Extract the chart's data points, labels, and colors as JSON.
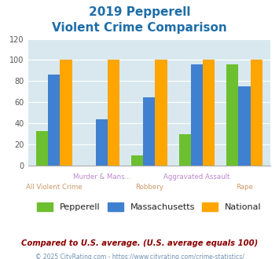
{
  "title_line1": "2019 Pepperell",
  "title_line2": "Violent Crime Comparison",
  "categories": [
    "All Violent Crime",
    "Murder & Mans...",
    "Robbery",
    "Aggravated Assault",
    "Rape"
  ],
  "series": {
    "Pepperell": [
      33,
      0,
      10,
      30,
      96
    ],
    "Massachusetts": [
      86,
      44,
      65,
      96,
      75
    ],
    "National": [
      100,
      100,
      100,
      100,
      100
    ]
  },
  "colors": {
    "Pepperell": "#6CBF2E",
    "Massachusetts": "#4080D0",
    "National": "#FFA500"
  },
  "ylim": [
    0,
    120
  ],
  "yticks": [
    0,
    20,
    40,
    60,
    80,
    100,
    120
  ],
  "footnote": "Compared to U.S. average. (U.S. average equals 100)",
  "copyright": "© 2025 CityRating.com - https://www.cityrating.com/crime-statistics/",
  "title_color": "#1F6EA8",
  "footnote_color": "#8B0000",
  "copyright_color": "#7090B0",
  "bg_color": "#FFFFFF",
  "plot_bg_color": "#D8E8EE",
  "grid_color": "#FFFFFF",
  "label_top_color": "#BB88CC",
  "label_bot_color": "#CC9966",
  "legend_text_color": "#222222"
}
